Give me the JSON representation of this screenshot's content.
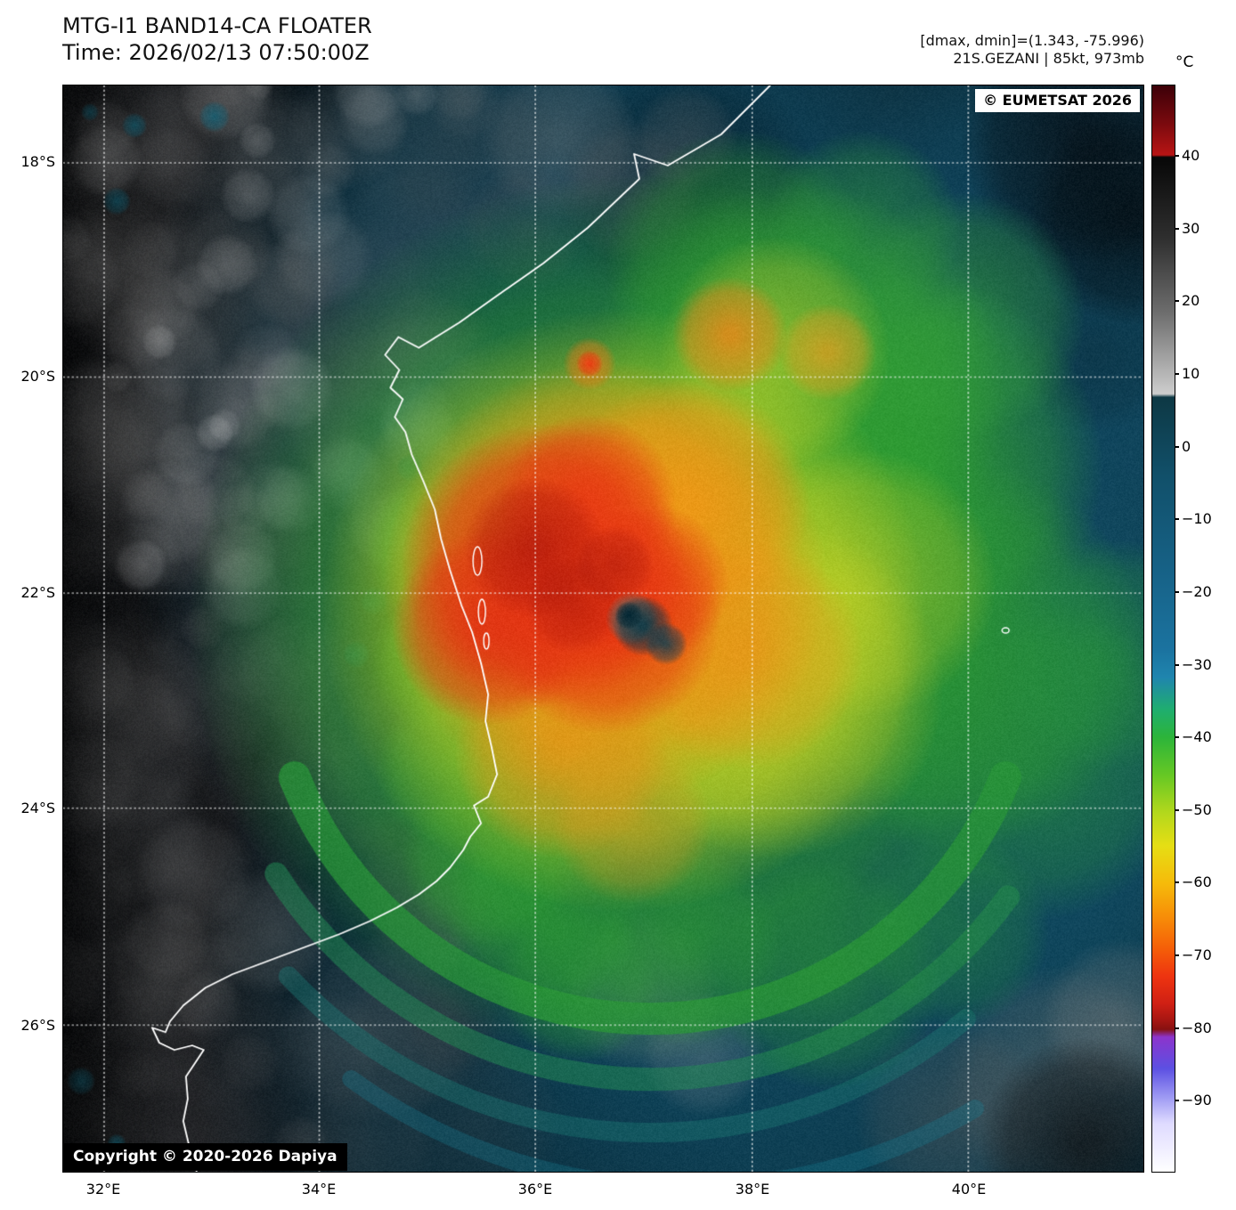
{
  "header": {
    "title": "MTG-I1 BAND14-CA FLOATER",
    "time_label": "Time: 2026/02/13 07:50:00Z",
    "dmax_dmin": "[dmax, dmin]=(1.343, -75.996)",
    "storm_info": "21S.GEZANI | 85kt, 973mb"
  },
  "map": {
    "provider_badge": "© EUMETSAT 2026",
    "copyright": "Copyright © 2020-2026 Dapiya",
    "lat_labels": [
      "18°S",
      "20°S",
      "22°S",
      "24°S",
      "26°S"
    ],
    "lon_labels": [
      "32°E",
      "34°E",
      "36°E",
      "38°E",
      "40°E"
    ]
  },
  "colorbar": {
    "unit": "°C",
    "tick_labels": [
      "40",
      "30",
      "20",
      "10",
      "0",
      "−10",
      "−20",
      "−30",
      "−40",
      "−50",
      "−60",
      "−70",
      "−80",
      "−90"
    ]
  },
  "colors": {
    "ocean_ir_blue": "#12485c",
    "storm_green": "#2aa03c",
    "storm_yellow": "#d8dc1e",
    "storm_orange": "#f08a12",
    "cold_core_red": "#d42114",
    "coastline": "#ffffff"
  }
}
